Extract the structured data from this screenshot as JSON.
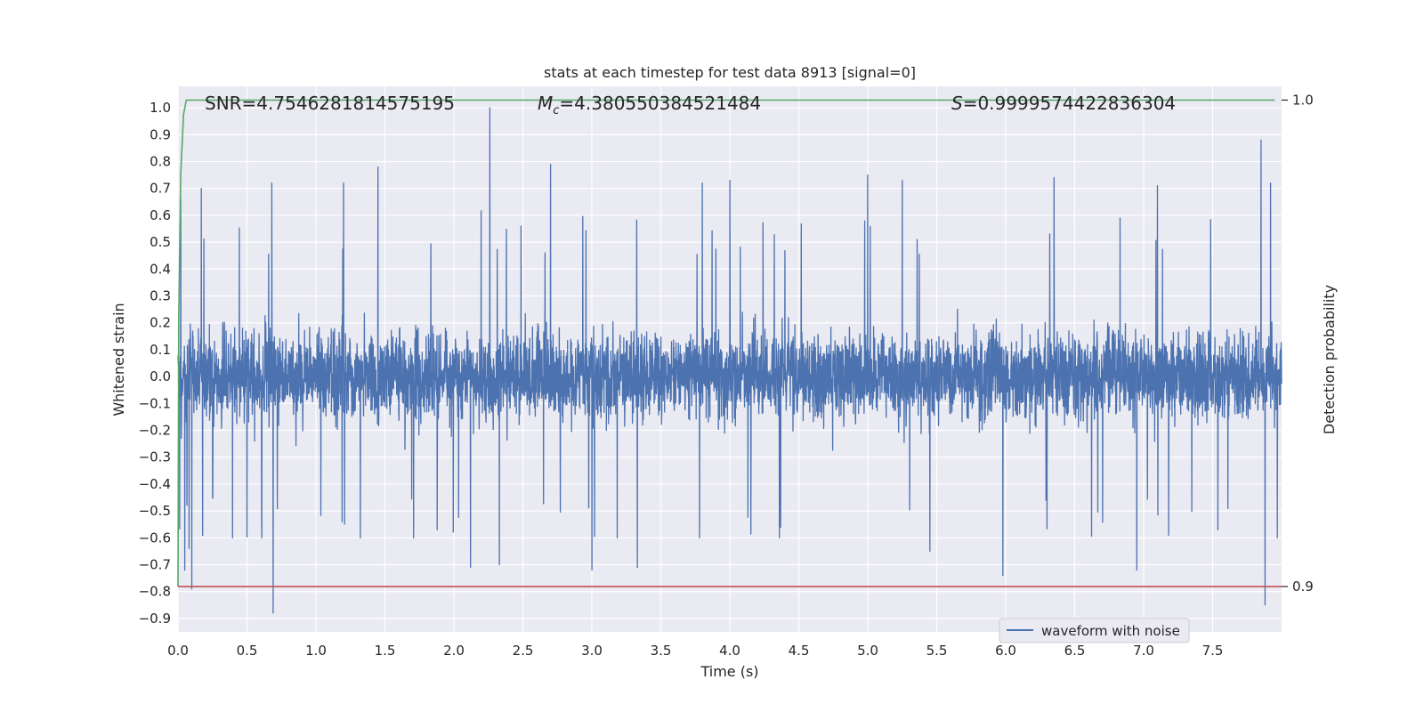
{
  "chart_data": {
    "type": "line",
    "title": "stats at each timestep for test data 8913 [signal=0]",
    "xlabel": "Time (s)",
    "ylabel": "Whitened strain",
    "ylabel_right": "Detection probability",
    "xlim": [
      0,
      8
    ],
    "ylim": [
      -0.95,
      1.08
    ],
    "y2lim": [
      0.89068,
      1.00283
    ],
    "x_ticks": [
      0.0,
      0.5,
      1.0,
      1.5,
      2.0,
      2.5,
      3.0,
      3.5,
      4.0,
      4.5,
      5.0,
      5.5,
      6.0,
      6.5,
      7.0,
      7.5
    ],
    "x_tick_labels": [
      "0.0",
      "0.5",
      "1.0",
      "1.5",
      "2.0",
      "2.5",
      "3.0",
      "3.5",
      "4.0",
      "4.5",
      "5.0",
      "5.5",
      "6.0",
      "6.5",
      "7.0",
      "7.5"
    ],
    "y_ticks": [
      1.0,
      0.9,
      0.8,
      0.7,
      0.6,
      0.5,
      0.4,
      0.3,
      0.2,
      0.1,
      0.0,
      -0.1,
      -0.2,
      -0.3,
      -0.4,
      -0.5,
      -0.6,
      -0.7,
      -0.8,
      -0.9
    ],
    "y_tick_labels": [
      "1.0",
      "0.9",
      "0.8",
      "0.7",
      "0.6",
      "0.5",
      "0.4",
      "0.3",
      "0.2",
      "0.1",
      "0.0",
      "−0.1",
      "−0.2",
      "−0.3",
      "−0.4",
      "−0.5",
      "−0.6",
      "−0.7",
      "−0.8",
      "−0.9"
    ],
    "y2_ticks": [
      1.0,
      0.9
    ],
    "y2_tick_labels": [
      "1.0",
      "0.9"
    ],
    "grid": true,
    "legend_position": "lower-right",
    "annotations": {
      "snr_label": "SNR=4.7546281814575195",
      "mc_symbol": "M",
      "mc_sub": "c",
      "mc_value": "=4.380550384521484",
      "s_symbol": "S",
      "s_value": "=0.9999574422836304"
    },
    "series": [
      {
        "name": "waveform with noise",
        "color": "#4c72b0",
        "axis": "left",
        "style": "noise",
        "x_range": [
          0,
          8
        ],
        "typical_envelope": [
          -0.45,
          0.45
        ],
        "spikes": [
          {
            "x": 0.02,
            "y": 0.66
          },
          {
            "x": 0.05,
            "y": -0.72
          },
          {
            "x": 0.08,
            "y": -0.64
          },
          {
            "x": 0.1,
            "y": -0.79
          },
          {
            "x": 0.17,
            "y": 0.7
          },
          {
            "x": 0.68,
            "y": 0.72
          },
          {
            "x": 0.69,
            "y": -0.88
          },
          {
            "x": 1.2,
            "y": 0.72
          },
          {
            "x": 1.45,
            "y": 0.78
          },
          {
            "x": 2.12,
            "y": -0.71
          },
          {
            "x": 2.26,
            "y": 1.0
          },
          {
            "x": 2.33,
            "y": -0.7
          },
          {
            "x": 2.7,
            "y": 0.79
          },
          {
            "x": 3.0,
            "y": -0.72
          },
          {
            "x": 3.33,
            "y": -0.71
          },
          {
            "x": 3.8,
            "y": 0.72
          },
          {
            "x": 4.0,
            "y": 0.73
          },
          {
            "x": 5.0,
            "y": 0.75
          },
          {
            "x": 5.25,
            "y": 0.73
          },
          {
            "x": 5.45,
            "y": -0.65
          },
          {
            "x": 5.98,
            "y": -0.74
          },
          {
            "x": 6.35,
            "y": 0.74
          },
          {
            "x": 6.95,
            "y": -0.72
          },
          {
            "x": 7.1,
            "y": 0.71
          },
          {
            "x": 7.85,
            "y": 0.88
          },
          {
            "x": 7.88,
            "y": -0.85
          },
          {
            "x": 7.92,
            "y": 0.72
          }
        ]
      },
      {
        "name": "",
        "color": "#55a868",
        "axis": "right",
        "x": [
          0.0,
          0.005,
          0.02,
          0.04,
          0.06,
          7.95
        ],
        "y": [
          0.9,
          0.955,
          0.985,
          0.997,
          1.0,
          1.0
        ]
      },
      {
        "name": "",
        "color": "#c44e52",
        "axis": "right",
        "x": [
          0.0,
          8.0
        ],
        "y": [
          0.9,
          0.9
        ]
      }
    ]
  }
}
